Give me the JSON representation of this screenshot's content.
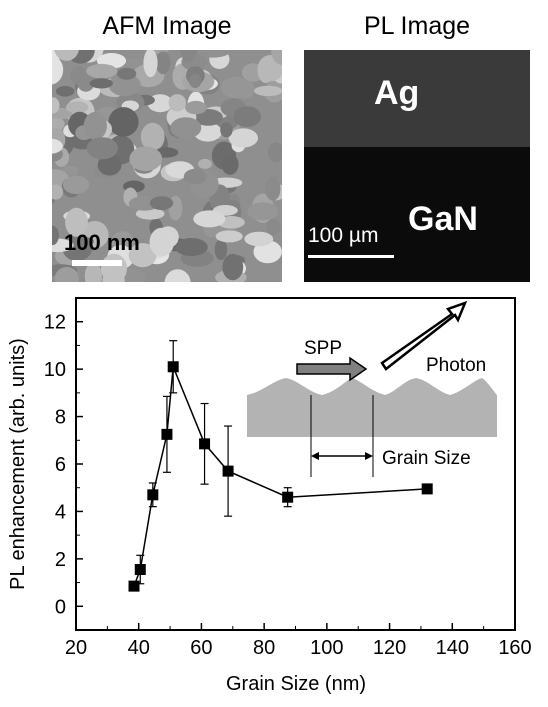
{
  "afm": {
    "title": "AFM Image",
    "scale_label": "100 nm"
  },
  "pl": {
    "title": "PL Image",
    "top_label": "Ag",
    "bottom_label": "GaN",
    "scale_label": "100 µm"
  },
  "inset": {
    "spp_label": "SPP",
    "photon_label": "Photon",
    "grain_size_label": "Grain Size"
  },
  "colors": {
    "afm_background": "#8f8f8f",
    "ag_region": "#3a3a3a",
    "gan_region": "#0b0b0b",
    "inset_surface": "#b3b3b3",
    "spp_arrow": "#808080"
  },
  "chart_data": {
    "type": "scatter",
    "xlabel": "Grain Size (nm)",
    "ylabel": "PL enhancement (arb. units)",
    "xlim": [
      20,
      160
    ],
    "ylim": [
      -1,
      13
    ],
    "xticks": [
      20,
      40,
      60,
      80,
      100,
      120,
      140,
      160
    ],
    "yticks": [
      0,
      2,
      4,
      6,
      8,
      10,
      12
    ],
    "grid": false,
    "marker": "square",
    "line_style": "solid",
    "points": [
      {
        "x": 38.5,
        "y": 0.85,
        "err": 0
      },
      {
        "x": 40.5,
        "y": 1.55,
        "err": 0.6
      },
      {
        "x": 44.5,
        "y": 4.7,
        "err": 0.5
      },
      {
        "x": 49,
        "y": 7.25,
        "err": 1.6
      },
      {
        "x": 51,
        "y": 10.1,
        "err": 1.1
      },
      {
        "x": 61,
        "y": 6.85,
        "err": 1.7
      },
      {
        "x": 68.5,
        "y": 5.7,
        "err": 1.9
      },
      {
        "x": 87.5,
        "y": 4.6,
        "err": 0.4
      },
      {
        "x": 132,
        "y": 4.95,
        "err": 0
      }
    ]
  }
}
